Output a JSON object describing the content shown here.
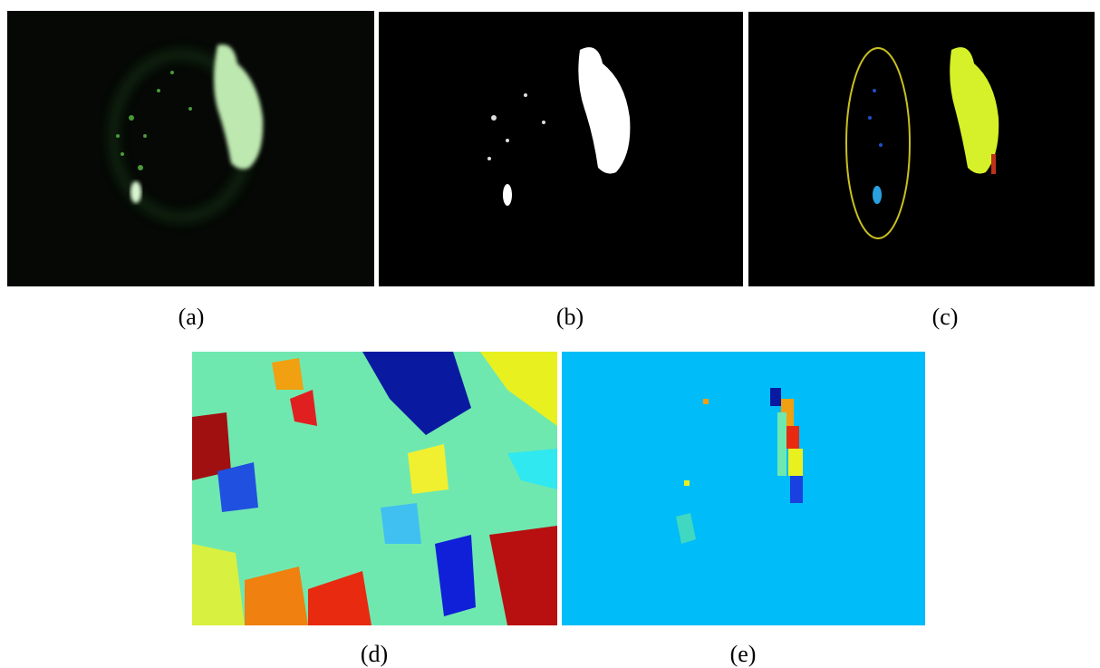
{
  "figure": {
    "captions": [
      "(a)",
      "(b)",
      "(c)",
      "(d)",
      "(e)"
    ]
  }
}
